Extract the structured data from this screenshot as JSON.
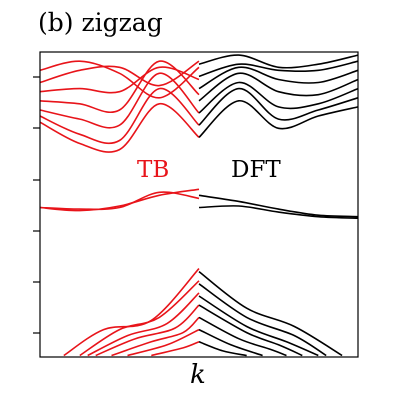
{
  "chart_data": {
    "type": "line",
    "title": "(b) zigzag",
    "xlabel": "k",
    "ylabel": "",
    "xlim": [
      0,
      2
    ],
    "ylim": [
      0,
      10
    ],
    "grid": false,
    "annotations": [
      {
        "text": "TB",
        "color": "#e8141a"
      },
      {
        "text": "DFT",
        "color": "#000000"
      }
    ],
    "series": [
      {
        "group": "TB",
        "x": [
          0,
          0.25,
          0.5,
          0.75,
          1
        ],
        "y": [
          9.4,
          9.7,
          9.3,
          8.5,
          9.5
        ]
      },
      {
        "group": "TB",
        "x": [
          0,
          0.25,
          0.5,
          0.75,
          1
        ],
        "y": [
          9.0,
          9.4,
          9.5,
          8.9,
          9.7
        ]
      },
      {
        "group": "TB",
        "x": [
          0,
          0.25,
          0.5,
          0.75,
          1
        ],
        "y": [
          8.7,
          8.8,
          8.7,
          9.5,
          9.1
        ]
      },
      {
        "group": "TB",
        "x": [
          0,
          0.25,
          0.5,
          0.75,
          1
        ],
        "y": [
          8.4,
          8.3,
          8.1,
          9.7,
          8.6
        ]
      },
      {
        "group": "TB",
        "x": [
          0,
          0.25,
          0.5,
          0.75,
          1
        ],
        "y": [
          8.1,
          7.8,
          7.6,
          9.3,
          8.0
        ]
      },
      {
        "group": "TB",
        "x": [
          0,
          0.25,
          0.5,
          0.75,
          1
        ],
        "y": [
          7.9,
          7.3,
          7.1,
          8.8,
          7.6
        ]
      },
      {
        "group": "TB",
        "x": [
          0,
          0.25,
          0.5,
          0.75,
          1
        ],
        "y": [
          7.7,
          7.0,
          6.8,
          8.3,
          7.2
        ]
      },
      {
        "group": "TB",
        "x": [
          0,
          0.25,
          0.5,
          0.75,
          1
        ],
        "y": [
          4.9,
          4.85,
          4.9,
          5.4,
          5.2
        ]
      },
      {
        "group": "TB",
        "x": [
          0,
          0.25,
          0.5,
          0.75,
          1
        ],
        "y": [
          4.9,
          4.8,
          4.95,
          5.3,
          5.5
        ]
      },
      {
        "group": "TB",
        "x": [
          0.15,
          0.4,
          0.7,
          1
        ],
        "y": [
          0.05,
          0.9,
          1.2,
          2.9
        ]
      },
      {
        "group": "TB",
        "x": [
          0.25,
          0.5,
          0.75,
          1
        ],
        "y": [
          0.05,
          0.9,
          1.3,
          2.5
        ]
      },
      {
        "group": "TB",
        "x": [
          0.3,
          0.55,
          0.8,
          1
        ],
        "y": [
          0.05,
          0.7,
          1.1,
          2.1
        ]
      },
      {
        "group": "TB",
        "x": [
          0.35,
          0.6,
          0.85,
          1
        ],
        "y": [
          0.05,
          0.6,
          0.95,
          1.7
        ]
      },
      {
        "group": "TB",
        "x": [
          0.45,
          0.7,
          0.9,
          1
        ],
        "y": [
          0.05,
          0.5,
          0.8,
          1.3
        ]
      },
      {
        "group": "TB",
        "x": [
          0.55,
          0.8,
          1
        ],
        "y": [
          0.05,
          0.4,
          0.9
        ]
      },
      {
        "group": "TB",
        "x": [
          0.7,
          0.9,
          1
        ],
        "y": [
          0.05,
          0.3,
          0.5
        ]
      },
      {
        "group": "DFT",
        "x": [
          1,
          1.25,
          1.5,
          1.75,
          2
        ],
        "y": [
          9.6,
          9.9,
          9.5,
          9.6,
          9.9
        ]
      },
      {
        "group": "DFT",
        "x": [
          1,
          1.25,
          1.5,
          1.75,
          2
        ],
        "y": [
          9.2,
          9.6,
          9.4,
          9.4,
          9.7
        ]
      },
      {
        "group": "DFT",
        "x": [
          1,
          1.25,
          1.5,
          1.75,
          2
        ],
        "y": [
          8.8,
          9.5,
          9.1,
          9.0,
          9.4
        ]
      },
      {
        "group": "DFT",
        "x": [
          1,
          1.25,
          1.5,
          1.75,
          2
        ],
        "y": [
          8.4,
          9.3,
          8.7,
          8.6,
          9.1
        ]
      },
      {
        "group": "DFT",
        "x": [
          1,
          1.25,
          1.5,
          1.75,
          2
        ],
        "y": [
          8.0,
          9.0,
          8.2,
          8.3,
          8.8
        ]
      },
      {
        "group": "DFT",
        "x": [
          1,
          1.25,
          1.5,
          1.75,
          2
        ],
        "y": [
          7.6,
          8.8,
          7.8,
          8.1,
          8.5
        ]
      },
      {
        "group": "DFT",
        "x": [
          1,
          1.25,
          1.5,
          1.75,
          2
        ],
        "y": [
          7.2,
          8.4,
          7.5,
          7.9,
          8.2
        ]
      },
      {
        "group": "DFT",
        "x": [
          1,
          1.25,
          1.5,
          1.75,
          2
        ],
        "y": [
          5.3,
          5.1,
          4.85,
          4.65,
          4.6
        ]
      },
      {
        "group": "DFT",
        "x": [
          1,
          1.25,
          1.5,
          1.75,
          2
        ],
        "y": [
          4.9,
          4.95,
          4.75,
          4.6,
          4.55
        ]
      },
      {
        "group": "DFT",
        "x": [
          1,
          1.3,
          1.6,
          1.9
        ],
        "y": [
          2.8,
          1.6,
          1.0,
          0.05
        ]
      },
      {
        "group": "DFT",
        "x": [
          1,
          1.3,
          1.6,
          1.8
        ],
        "y": [
          2.4,
          1.3,
          0.7,
          0.05
        ]
      },
      {
        "group": "DFT",
        "x": [
          1,
          1.3,
          1.55,
          1.75
        ],
        "y": [
          2.0,
          1.0,
          0.5,
          0.05
        ]
      },
      {
        "group": "DFT",
        "x": [
          1,
          1.3,
          1.5,
          1.65
        ],
        "y": [
          1.7,
          0.8,
          0.4,
          0.05
        ]
      },
      {
        "group": "DFT",
        "x": [
          1,
          1.25,
          1.45,
          1.55
        ],
        "y": [
          1.3,
          0.6,
          0.25,
          0.05
        ]
      },
      {
        "group": "DFT",
        "x": [
          1,
          1.2,
          1.4
        ],
        "y": [
          0.9,
          0.4,
          0.05
        ]
      },
      {
        "group": "DFT",
        "x": [
          1,
          1.15,
          1.3
        ],
        "y": [
          0.5,
          0.2,
          0.05
        ]
      }
    ],
    "colors": {
      "TB": "#e8141a",
      "DFT": "#000000"
    }
  }
}
